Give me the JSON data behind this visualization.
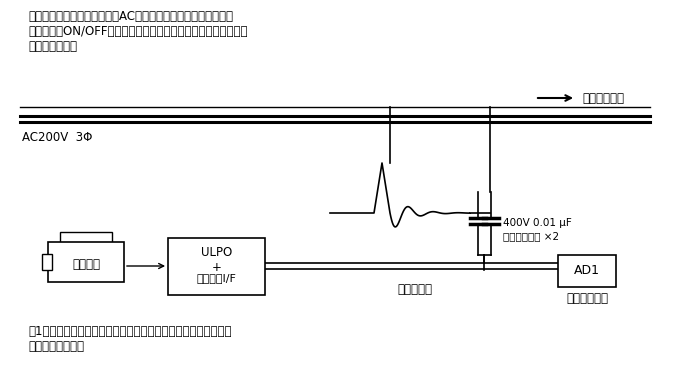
{
  "bg_color": "#ffffff",
  "text_color": "#000000",
  "top_text_lines": [
    "下記のように外部の動力線とAC結合させて外来サージの影響で",
    "伝送信号のON/OFFや異常があれば印字させるような構成で長期",
    "の試験をした。"
  ],
  "bottom_text_lines": [
    "絉1年間連続して試験を行ったが素子破壊、動作不良等の異常は",
    "見られなかった。"
  ],
  "arrow_label": "関西電力外線",
  "ac_label": "AC200V  3Φ",
  "capacitor_label1": "400V 0.01 μF",
  "capacitor_label2": "フィルムコン ×2",
  "printer_label": "プリンタ",
  "ulpo_label1": "ULPO",
  "ulpo_label2": "+",
  "ulpo_label3": "プリンタI/F",
  "transmission_label": "伝送ライン",
  "ad1_label": "AD1",
  "unit_label": "入力ユニット",
  "fig_w": 6.83,
  "fig_h": 3.77,
  "dpi": 100
}
